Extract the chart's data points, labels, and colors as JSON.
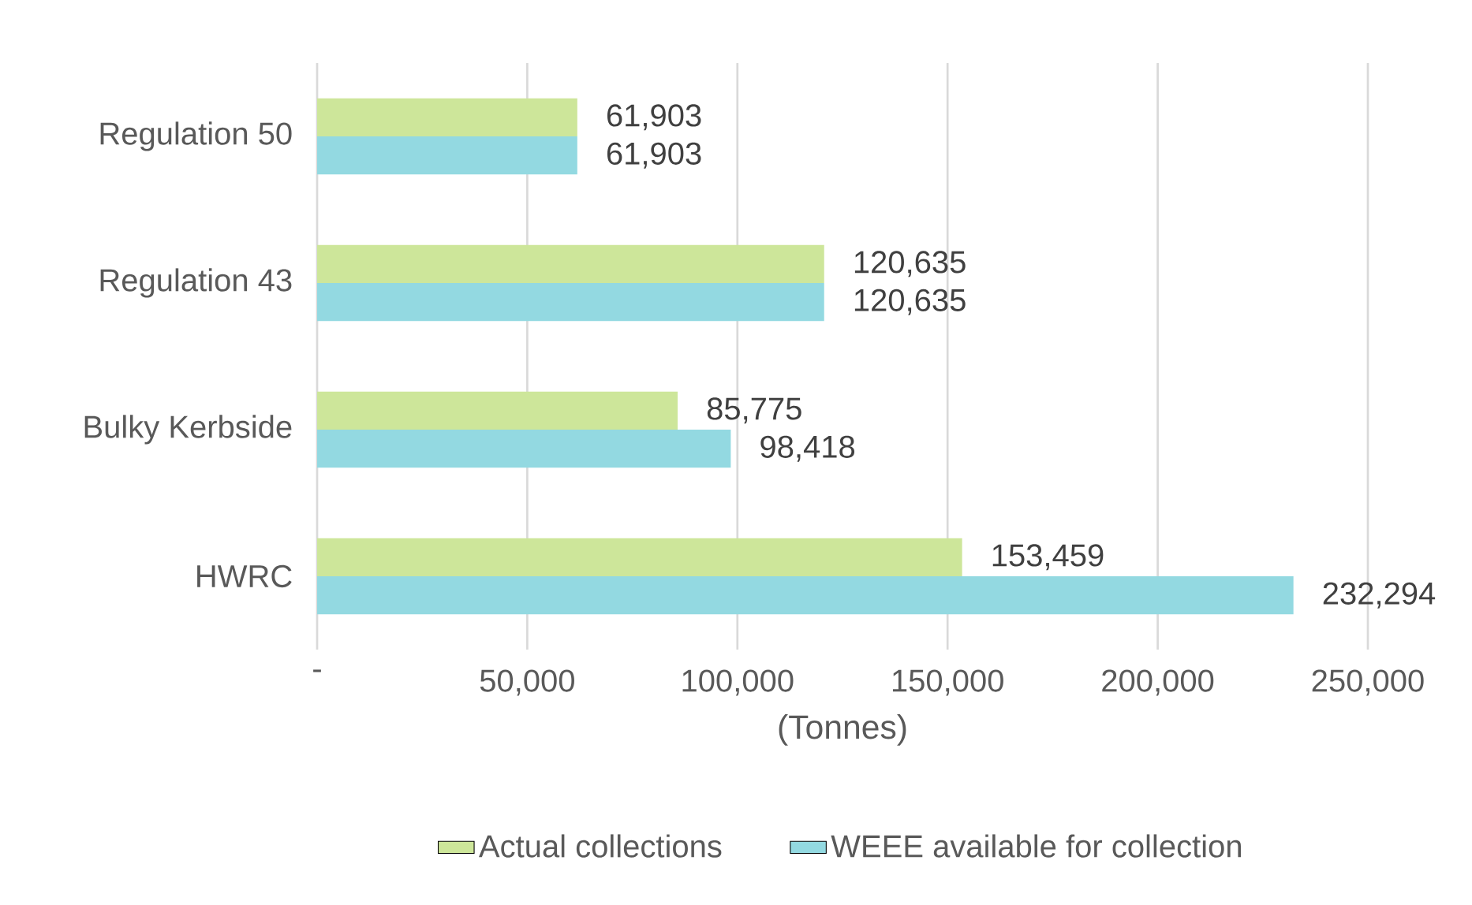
{
  "chart_data": {
    "type": "bar",
    "orientation": "horizontal",
    "categories": [
      "Regulation 50",
      "Regulation 43",
      "Bulky Kerbside",
      "HWRC"
    ],
    "series": [
      {
        "name": "Actual collections",
        "color": "#cde69a",
        "values": [
          61903,
          120635,
          85775,
          153459
        ],
        "value_labels": [
          "61,903",
          "120,635",
          "85,775",
          "153,459"
        ]
      },
      {
        "name": "WEEE available for collection",
        "color": "#93d9e1",
        "values": [
          61903,
          120635,
          98418,
          232294
        ],
        "value_labels": [
          "61,903",
          "120,635",
          "98,418",
          "232,294"
        ]
      }
    ],
    "xlabel": "(Tonnes)",
    "xlim": [
      0,
      250000
    ],
    "xticks": [
      {
        "value": 0,
        "label": "-"
      },
      {
        "value": 50000,
        "label": "50,000"
      },
      {
        "value": 100000,
        "label": "100,000"
      },
      {
        "value": 150000,
        "label": "150,000"
      },
      {
        "value": 200000,
        "label": "200,000"
      },
      {
        "value": 250000,
        "label": "250,000"
      }
    ],
    "grid": "x",
    "legend": "bottom"
  }
}
